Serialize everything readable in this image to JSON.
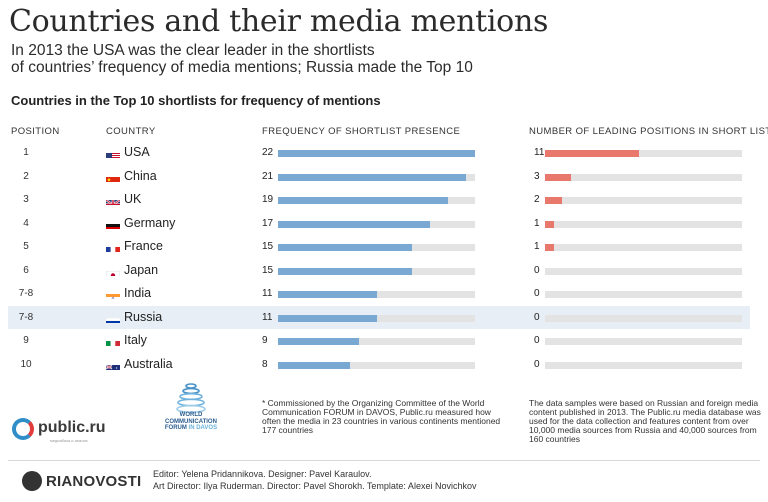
{
  "header": {
    "title": "Countries and their media mentions",
    "subtitle_line1": "In 2013 the USA was the clear leader in the shortlists",
    "subtitle_line2": "of countries’ frequency of media mentions; Russia made the Top 10",
    "section_title": "Countries in the Top 10 shortlists for frequency of mentions"
  },
  "columns": {
    "position": "POSITION",
    "country": "COUNTRY",
    "frequency": "FREQUENCY OF SHORTLIST PRESENCE",
    "leading": "NUMBER OF LEADING POSITIONS IN SHORT LISTS"
  },
  "chart_data": {
    "type": "bar",
    "categories": [
      "USA",
      "China",
      "UK",
      "Germany",
      "France",
      "Japan",
      "India",
      "Russia",
      "Italy",
      "Australia"
    ],
    "positions": [
      "1",
      "2",
      "3",
      "4",
      "5",
      "6",
      "7-8",
      "7-8",
      "9",
      "10"
    ],
    "flags": [
      "us-flag-icon",
      "china-flag-icon",
      "uk-flag-icon",
      "germany-flag-icon",
      "france-flag-icon",
      "japan-flag-icon",
      "india-flag-icon",
      "russia-flag-icon",
      "italy-flag-icon",
      "australia-flag-icon"
    ],
    "highlighted_category": "Russia",
    "series": [
      {
        "name": "FREQUENCY OF SHORTLIST PRESENCE",
        "values": [
          22,
          21,
          19,
          17,
          15,
          15,
          11,
          11,
          9,
          8
        ],
        "color": "#79a9d2",
        "max": 22
      },
      {
        "name": "NUMBER OF LEADING POSITIONS IN SHORT LISTS",
        "values": [
          11,
          3,
          2,
          1,
          1,
          0,
          0,
          0,
          0,
          0
        ],
        "color": "#e8776c",
        "max": 23
      }
    ],
    "track_color": "#e3e3e3",
    "highlight_color": "#e7eef6"
  },
  "footnotes": {
    "left": "* Commissioned by the Organizing Committee of the World Communication FORUM in DAVOS, Public.ru measured how often the media in 23 countries in various continents  mentioned 177 countries",
    "right": "The data samples were based on Russian and foreign media content published in 2013. The Public.ru media database was used for the data collection and features content from over 10,000 media sources from Russia and 40,000 sources from 160 countries"
  },
  "logos": {
    "public_ru": "public.ru",
    "public_ru_sub": "медиабаза и анализ",
    "wcf_line1": "WORLD",
    "wcf_line2": "COMMUNICATION",
    "wcf_line3": "FORUM",
    "wcf_line3_accent": "IN DAVOS",
    "ria": "RIANOVOSTI"
  },
  "credits": {
    "line1": "Editor: Yelena Pridannikova. Designer: Pavel Karaulov.",
    "line2": "Art Director: Ilya Ruderman. Director: Pavel Shorokh. Template: Alexei Novichkov"
  }
}
